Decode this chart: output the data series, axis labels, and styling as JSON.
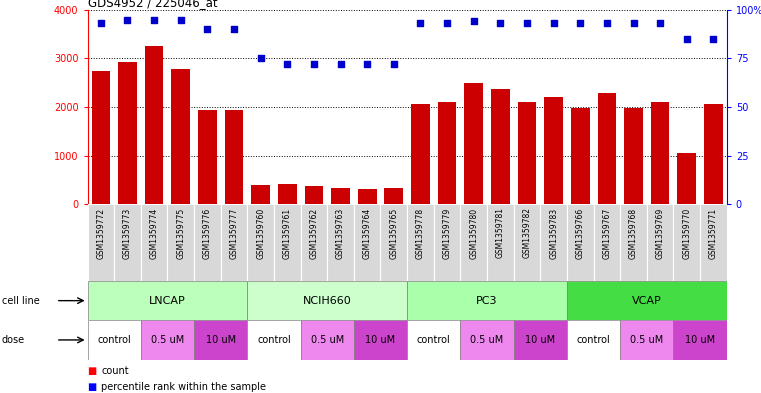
{
  "title": "GDS4952 / 225046_at",
  "samples": [
    "GSM1359772",
    "GSM1359773",
    "GSM1359774",
    "GSM1359775",
    "GSM1359776",
    "GSM1359777",
    "GSM1359760",
    "GSM1359761",
    "GSM1359762",
    "GSM1359763",
    "GSM1359764",
    "GSM1359765",
    "GSM1359778",
    "GSM1359779",
    "GSM1359780",
    "GSM1359781",
    "GSM1359782",
    "GSM1359783",
    "GSM1359766",
    "GSM1359767",
    "GSM1359768",
    "GSM1359769",
    "GSM1359770",
    "GSM1359771"
  ],
  "counts": [
    2750,
    2920,
    3250,
    2780,
    1950,
    1950,
    400,
    420,
    380,
    340,
    320,
    340,
    2060,
    2110,
    2490,
    2370,
    2100,
    2200,
    1980,
    2300,
    1990,
    2100,
    1060,
    2060
  ],
  "percentiles": [
    93,
    95,
    95,
    95,
    90,
    90,
    75,
    72,
    72,
    72,
    72,
    72,
    93,
    93,
    94,
    93,
    93,
    93,
    93,
    93,
    93,
    93,
    85,
    85
  ],
  "cell_lines": [
    {
      "name": "LNCAP",
      "start": 0,
      "end": 6,
      "color": "#bbffbb"
    },
    {
      "name": "NCIH660",
      "start": 6,
      "end": 12,
      "color": "#ccffcc"
    },
    {
      "name": "PC3",
      "start": 12,
      "end": 18,
      "color": "#aaffaa"
    },
    {
      "name": "VCAP",
      "start": 18,
      "end": 24,
      "color": "#44dd44"
    }
  ],
  "doses": [
    {
      "name": "control",
      "start": 0,
      "end": 2,
      "color": "#ffffff"
    },
    {
      "name": "0.5 uM",
      "start": 2,
      "end": 4,
      "color": "#ee88ee"
    },
    {
      "name": "10 uM",
      "start": 4,
      "end": 6,
      "color": "#cc44cc"
    },
    {
      "name": "control",
      "start": 6,
      "end": 8,
      "color": "#ffffff"
    },
    {
      "name": "0.5 uM",
      "start": 8,
      "end": 10,
      "color": "#ee88ee"
    },
    {
      "name": "10 uM",
      "start": 10,
      "end": 12,
      "color": "#cc44cc"
    },
    {
      "name": "control",
      "start": 12,
      "end": 14,
      "color": "#ffffff"
    },
    {
      "name": "0.5 uM",
      "start": 14,
      "end": 16,
      "color": "#ee88ee"
    },
    {
      "name": "10 uM",
      "start": 16,
      "end": 18,
      "color": "#cc44cc"
    },
    {
      "name": "control",
      "start": 18,
      "end": 20,
      "color": "#ffffff"
    },
    {
      "name": "0.5 uM",
      "start": 20,
      "end": 22,
      "color": "#ee88ee"
    },
    {
      "name": "10 uM",
      "start": 22,
      "end": 24,
      "color": "#cc44cc"
    }
  ],
  "bar_color": "#cc0000",
  "dot_color": "#0000cc",
  "ylim_left": [
    0,
    4000
  ],
  "ylim_right": [
    0,
    100
  ],
  "yticks_left": [
    0,
    1000,
    2000,
    3000,
    4000
  ],
  "yticks_right": [
    0,
    25,
    50,
    75,
    100
  ],
  "ytick_labels_right": [
    "0",
    "25",
    "50",
    "75",
    "100%"
  ],
  "background_color": "#ffffff",
  "sample_box_color": "#d8d8d8"
}
